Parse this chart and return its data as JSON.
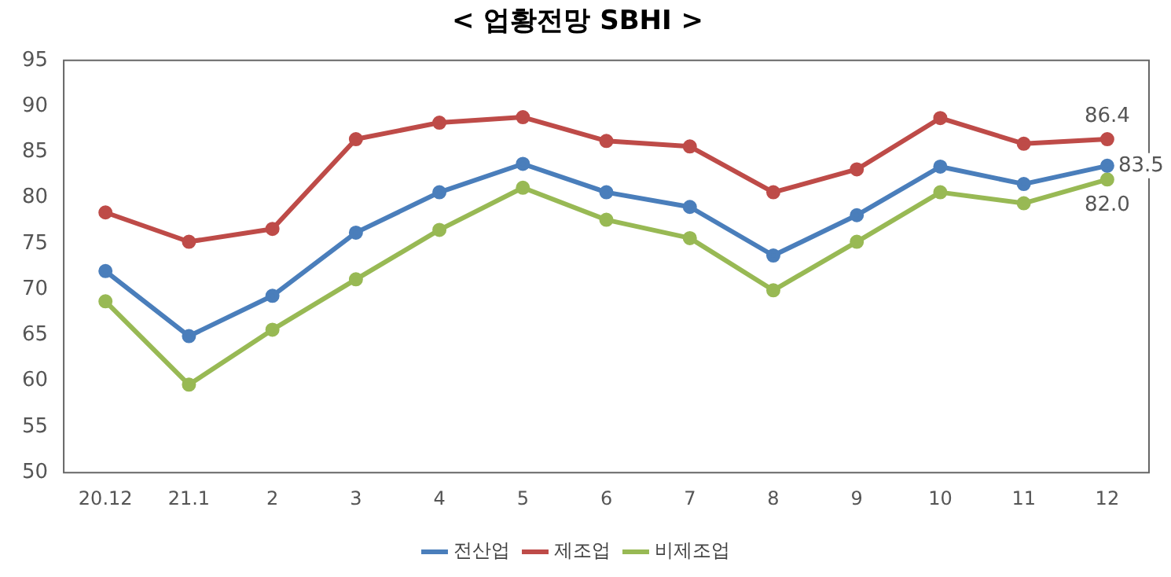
{
  "chart_data": {
    "type": "line",
    "title": "< 업황전망 SBHI >",
    "categories": [
      "20.12",
      "21.1",
      "2",
      "3",
      "4",
      "5",
      "6",
      "7",
      "8",
      "9",
      "10",
      "11",
      "12"
    ],
    "series": [
      {
        "name": "전산업",
        "color": "#4a7ebb",
        "values": [
          72.0,
          64.9,
          69.3,
          76.2,
          80.6,
          83.7,
          80.6,
          79.0,
          73.7,
          78.1,
          83.4,
          81.5,
          83.5
        ],
        "value_labels": [
          null,
          null,
          null,
          null,
          null,
          null,
          null,
          null,
          null,
          null,
          null,
          null,
          "83.5"
        ]
      },
      {
        "name": "제조업",
        "color": "#be4b48",
        "values": [
          78.4,
          75.2,
          76.6,
          86.4,
          88.2,
          88.8,
          86.2,
          85.6,
          80.6,
          83.1,
          88.7,
          85.9,
          86.4
        ],
        "value_labels": [
          null,
          null,
          null,
          null,
          null,
          null,
          null,
          null,
          null,
          null,
          null,
          null,
          "86.4"
        ]
      },
      {
        "name": "비제조업",
        "color": "#98b954",
        "values": [
          68.7,
          59.6,
          65.6,
          71.1,
          76.5,
          81.1,
          77.6,
          75.6,
          69.9,
          75.2,
          80.6,
          79.4,
          82.0
        ],
        "value_labels": [
          null,
          null,
          null,
          null,
          null,
          null,
          null,
          null,
          null,
          null,
          null,
          null,
          "82.0"
        ]
      }
    ],
    "ylim": [
      50,
      95
    ],
    "yticks": [
      50,
      55,
      60,
      65,
      70,
      75,
      80,
      85,
      90,
      95
    ],
    "grid": false,
    "legend": "bottom",
    "marker": "circle",
    "line_style": "solid"
  }
}
